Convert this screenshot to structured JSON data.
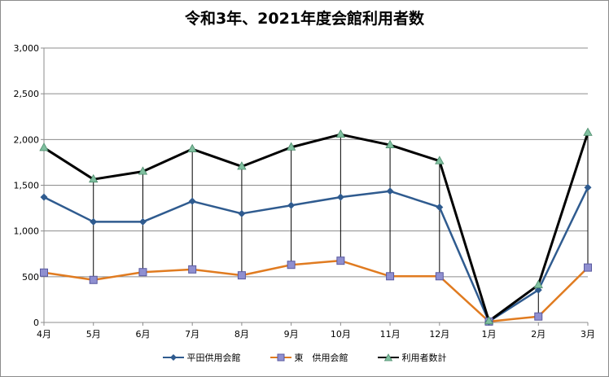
{
  "chart_data": {
    "type": "line",
    "title": "令和3年、2021年度会館利用者数",
    "xlabel": "",
    "ylabel": "",
    "categories": [
      "4月",
      "5月",
      "6月",
      "7月",
      "8月",
      "9月",
      "10月",
      "11月",
      "12月",
      "1月",
      "2月",
      "3月"
    ],
    "ylim": [
      0,
      3000
    ],
    "yticks": [
      0,
      500,
      1000,
      1500,
      2000,
      2500,
      3000
    ],
    "ytick_labels": [
      "0",
      "500",
      "1,000",
      "1,500",
      "2,000",
      "2,500",
      "3,000"
    ],
    "grid": true,
    "legend_position": "bottom",
    "series": [
      {
        "name": "平田供用会館",
        "color": "#2f5b8f",
        "marker": "diamond",
        "values": [
          1370,
          1100,
          1100,
          1325,
          1190,
          1280,
          1370,
          1435,
          1260,
          10,
          355,
          1475
        ]
      },
      {
        "name": "東　供用会館",
        "color": "#e07b20",
        "marker": "square",
        "values": [
          545,
          465,
          550,
          580,
          515,
          630,
          675,
          505,
          505,
          10,
          65,
          600
        ]
      },
      {
        "name": "利用者数計",
        "color": "#000000",
        "marker": "triangle",
        "values": [
          1910,
          1565,
          1650,
          1895,
          1705,
          1915,
          2055,
          1940,
          1765,
          15,
          410,
          2075
        ]
      }
    ]
  }
}
